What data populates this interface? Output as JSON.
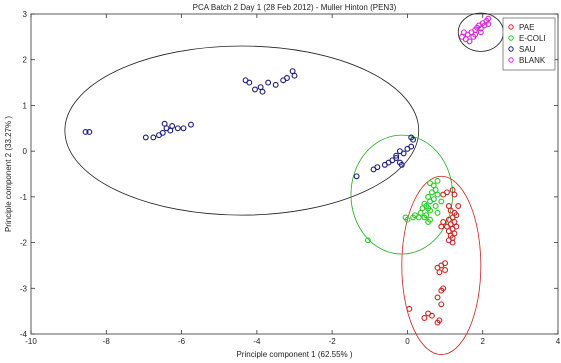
{
  "chart_data": {
    "type": "scatter",
    "title": "PCA Batch 2 Day 1 (28 Feb 2012) - Muller Hinton (PEN3)",
    "xlabel": "Principle component  1 (62.55% )",
    "ylabel": "Principle component  2 (33.27% )",
    "xlim": [
      -10,
      4
    ],
    "ylim": [
      -4,
      3
    ],
    "xticks": [
      "-10",
      "-8",
      "-6",
      "-4",
      "-2",
      "0",
      "2",
      "4"
    ],
    "yticks": [
      "-4",
      "-3",
      "-2",
      "-1",
      "0",
      "1",
      "2",
      "3"
    ],
    "grid": false,
    "legend_position": "top-right",
    "series": [
      {
        "name": "PAE",
        "color": "#cc2222",
        "points": [
          [
            0.95,
            -0.95
          ],
          [
            1.05,
            -0.9
          ],
          [
            1.2,
            -0.85
          ],
          [
            1.25,
            -0.95
          ],
          [
            1.1,
            -1.2
          ],
          [
            1.15,
            -1.3
          ],
          [
            1.25,
            -1.35
          ],
          [
            1.3,
            -1.4
          ],
          [
            1.2,
            -1.45
          ],
          [
            1.1,
            -1.5
          ],
          [
            1.25,
            -1.55
          ],
          [
            1.15,
            -1.6
          ],
          [
            1.3,
            -1.65
          ],
          [
            1.2,
            -1.7
          ],
          [
            1.1,
            -1.75
          ],
          [
            1.25,
            -1.8
          ],
          [
            1.15,
            -1.85
          ],
          [
            1.2,
            -1.9
          ],
          [
            1.1,
            -1.95
          ],
          [
            1.2,
            -2.0
          ],
          [
            1.05,
            -1.65
          ],
          [
            0.95,
            -1.55
          ],
          [
            0.9,
            -1.65
          ],
          [
            1.35,
            -1.2
          ],
          [
            1.0,
            -2.45
          ],
          [
            0.9,
            -2.5
          ],
          [
            0.8,
            -2.55
          ],
          [
            1.0,
            -2.6
          ],
          [
            0.85,
            -2.65
          ],
          [
            0.95,
            -3.0
          ],
          [
            0.9,
            -3.05
          ],
          [
            0.8,
            -3.2
          ],
          [
            0.9,
            -3.35
          ],
          [
            0.55,
            -3.55
          ],
          [
            0.65,
            -3.6
          ],
          [
            0.45,
            -3.65
          ],
          [
            0.85,
            -3.7
          ],
          [
            0.8,
            -3.75
          ],
          [
            0.05,
            -3.45
          ]
        ]
      },
      {
        "name": "E-COLI",
        "color": "#22cc22",
        "points": [
          [
            0.6,
            -0.7
          ],
          [
            0.7,
            -0.75
          ],
          [
            0.8,
            -0.65
          ],
          [
            0.75,
            -0.85
          ],
          [
            0.65,
            -0.9
          ],
          [
            0.8,
            -0.95
          ],
          [
            0.55,
            -1.0
          ],
          [
            0.7,
            -1.05
          ],
          [
            0.6,
            -1.1
          ],
          [
            0.45,
            -1.15
          ],
          [
            0.5,
            -1.2
          ],
          [
            0.55,
            -1.25
          ],
          [
            0.4,
            -1.25
          ],
          [
            0.6,
            -1.3
          ],
          [
            0.35,
            -1.35
          ],
          [
            0.5,
            -1.4
          ],
          [
            0.45,
            -1.45
          ],
          [
            0.3,
            -1.45
          ],
          [
            0.6,
            -1.5
          ],
          [
            0.55,
            -1.55
          ],
          [
            0.2,
            -1.4
          ],
          [
            0.15,
            -1.45
          ],
          [
            0.0,
            -1.5
          ],
          [
            -0.05,
            -1.45
          ],
          [
            0.8,
            -1.35
          ],
          [
            0.75,
            -1.2
          ],
          [
            0.9,
            -1.1
          ],
          [
            -1.05,
            -1.95
          ]
        ]
      },
      {
        "name": "SAU",
        "color": "#1a1a80",
        "points": [
          [
            -8.45,
            0.42
          ],
          [
            -8.55,
            0.42
          ],
          [
            -6.95,
            0.3
          ],
          [
            -6.75,
            0.3
          ],
          [
            -6.6,
            0.35
          ],
          [
            -6.5,
            0.4
          ],
          [
            -6.4,
            0.5
          ],
          [
            -6.3,
            0.45
          ],
          [
            -6.25,
            0.55
          ],
          [
            -6.1,
            0.5
          ],
          [
            -5.95,
            0.5
          ],
          [
            -5.75,
            0.58
          ],
          [
            -6.45,
            0.6
          ],
          [
            -4.3,
            1.55
          ],
          [
            -4.2,
            1.5
          ],
          [
            -4.05,
            1.35
          ],
          [
            -3.9,
            1.4
          ],
          [
            -3.7,
            1.5
          ],
          [
            -3.5,
            1.45
          ],
          [
            -3.3,
            1.55
          ],
          [
            -3.2,
            1.6
          ],
          [
            -3.0,
            1.65
          ],
          [
            -3.05,
            1.75
          ],
          [
            -3.85,
            1.3
          ],
          [
            -1.35,
            -0.55
          ],
          [
            -0.9,
            -0.4
          ],
          [
            -0.8,
            -0.35
          ],
          [
            -0.6,
            -0.3
          ],
          [
            -0.5,
            -0.25
          ],
          [
            -0.4,
            -0.2
          ],
          [
            -0.3,
            -0.1
          ],
          [
            -0.2,
            0.0
          ],
          [
            -0.1,
            -0.05
          ],
          [
            0.0,
            0.05
          ],
          [
            0.1,
            0.1
          ],
          [
            0.15,
            0.25
          ],
          [
            0.1,
            0.3
          ],
          [
            -0.15,
            -0.3
          ],
          [
            -0.3,
            -0.15
          ],
          [
            -0.2,
            -0.25
          ]
        ]
      },
      {
        "name": "BLANK",
        "color": "#dd22dd",
        "points": [
          [
            1.45,
            2.5
          ],
          [
            1.55,
            2.45
          ],
          [
            1.6,
            2.55
          ],
          [
            1.7,
            2.6
          ],
          [
            1.75,
            2.5
          ],
          [
            1.8,
            2.65
          ],
          [
            1.85,
            2.7
          ],
          [
            1.9,
            2.75
          ],
          [
            1.95,
            2.68
          ],
          [
            2.0,
            2.8
          ],
          [
            2.05,
            2.75
          ],
          [
            2.1,
            2.85
          ],
          [
            2.15,
            2.78
          ],
          [
            1.65,
            2.4
          ],
          [
            1.95,
            2.6
          ],
          [
            2.15,
            2.9
          ],
          [
            1.5,
            2.6
          ],
          [
            1.8,
            2.55
          ]
        ]
      }
    ],
    "confidence_ellipses": [
      {
        "series": "SAU",
        "cx": -4.4,
        "cy": 0.45,
        "rx": 4.7,
        "ry": 1.85,
        "color": "#222222"
      },
      {
        "series": "E-COLI",
        "cx": -0.15,
        "cy": -0.95,
        "rx": 1.35,
        "ry": 1.3,
        "color": "#22aa22"
      },
      {
        "series": "PAE",
        "cx": 0.9,
        "cy": -2.5,
        "rx": 1.05,
        "ry": 1.95,
        "color": "#cc2222"
      },
      {
        "series": "BLANK",
        "cx": 1.95,
        "cy": 2.6,
        "rx": 0.6,
        "ry": 0.42,
        "color": "#222222"
      }
    ]
  }
}
